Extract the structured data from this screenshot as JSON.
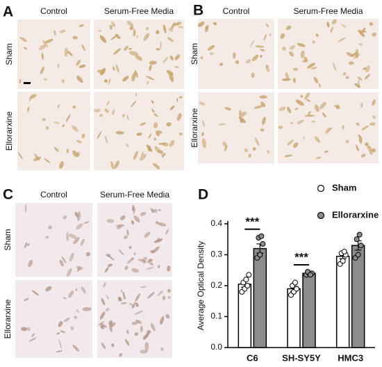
{
  "panels": [
    {
      "label": "A",
      "columns": [
        "Control",
        "Serum-Free Media"
      ],
      "rows": [
        "Sham",
        "Ellorarxine"
      ]
    },
    {
      "label": "B",
      "columns": [
        "Control",
        "Serum-Free Media"
      ],
      "rows": [
        "Sham",
        "Ellorarxine"
      ]
    },
    {
      "label": "C",
      "columns": [
        "Control",
        "Serum-Free Media"
      ],
      "rows": [
        "Sham",
        "Ellorarxine"
      ]
    }
  ],
  "chart_data": {
    "type": "bar",
    "label": "D",
    "ylabel": "Average Optical Density",
    "categories": [
      "C6",
      "SH-SY5Y",
      "HMC3"
    ],
    "ylim": [
      0,
      0.4
    ],
    "yticks": [
      {
        "value": 0,
        "label": "0.0"
      },
      0.1,
      0.2,
      0.3,
      0.4
    ],
    "series": [
      {
        "name": "Sham",
        "color": "#ffffff",
        "values": [
          0.205,
          0.19,
          0.295
        ],
        "errors": [
          0.01,
          0.008,
          0.008
        ],
        "points": [
          [
            0.18,
            0.19,
            0.2,
            0.21,
            0.22,
            0.235
          ],
          [
            0.17,
            0.18,
            0.19,
            0.2,
            0.21
          ],
          [
            0.27,
            0.28,
            0.3,
            0.305,
            0.31
          ]
        ]
      },
      {
        "name": "Ellorarxine",
        "color": "#8c8c8c",
        "values": [
          0.32,
          0.24,
          0.33
        ],
        "errors": [
          0.015,
          0.004,
          0.015
        ],
        "points": [
          [
            0.29,
            0.3,
            0.335,
            0.355,
            0.36
          ],
          [
            0.235,
            0.24,
            0.24,
            0.245,
            0.235
          ],
          [
            0.29,
            0.3,
            0.33,
            0.35,
            0.365
          ]
        ]
      }
    ],
    "annotations": [
      {
        "category": "C6",
        "text": "***"
      },
      {
        "category": "SH-SY5Y",
        "text": "***"
      }
    ]
  }
}
